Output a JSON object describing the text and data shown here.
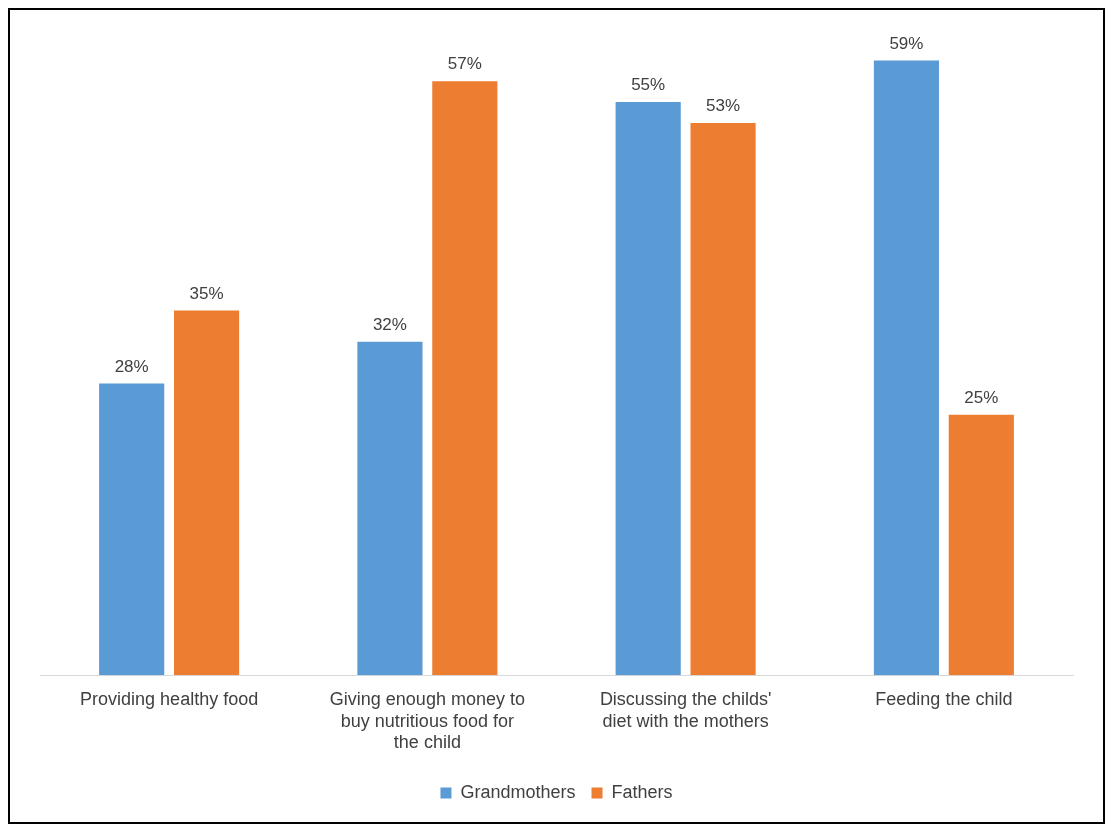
{
  "chart_data": {
    "type": "bar",
    "categories": [
      "Providing healthy food",
      "Giving enough money to buy nutritious food for the child",
      "Discussing the childs' diet with the mothers",
      "Feeding the child"
    ],
    "series": [
      {
        "name": "Grandmothers",
        "color": "#5b9bd5",
        "values": [
          28,
          32,
          55,
          59
        ],
        "value_labels": [
          "28%",
          "32%",
          "55%",
          "59%"
        ]
      },
      {
        "name": "Fathers",
        "color": "#ed7d31",
        "values": [
          35,
          57,
          53,
          25
        ],
        "value_labels": [
          "35%",
          "57%",
          "53%",
          "25%"
        ]
      }
    ],
    "legend": "bottom",
    "grid": false
  }
}
